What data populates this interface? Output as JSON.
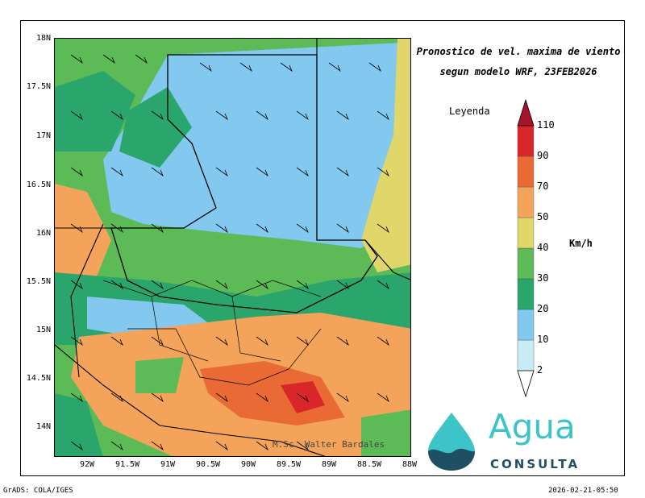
{
  "map": {
    "title_line1": "Pronostico de vel. maxima de viento",
    "title_line2": "segun modelo WRF, 23FEB2026",
    "lat_labels": [
      "18N",
      "17.5N",
      "17N",
      "16.5N",
      "16N",
      "15.5N",
      "15N",
      "14.5N",
      "14N"
    ],
    "lon_labels": [
      "92W",
      "91.5W",
      "91W",
      "90.5W",
      "90W",
      "89.5W",
      "89W",
      "88.5W",
      "88W"
    ],
    "author": "M.Sc. Walter Bardales"
  },
  "legend": {
    "title": "Leyenda",
    "units": "Km/h",
    "levels": [
      "2",
      "10",
      "20",
      "30",
      "40",
      "50",
      "70",
      "90",
      "110"
    ],
    "colors": [
      "#ffffff",
      "#c8ecf6",
      "#82c8ef",
      "#2aa66d",
      "#5cbb56",
      "#e0d66a",
      "#f4a45a",
      "#ea6a35",
      "#d9262a",
      "#a5142a"
    ]
  },
  "footer": {
    "software": "GrADS: COLA/IGES",
    "timestamp": "2026-02-21-05:50"
  },
  "logo": {
    "word": "Agua",
    "sub": "CONSULTA",
    "colors": [
      "#3cc4c9",
      "#1e4f62"
    ]
  }
}
